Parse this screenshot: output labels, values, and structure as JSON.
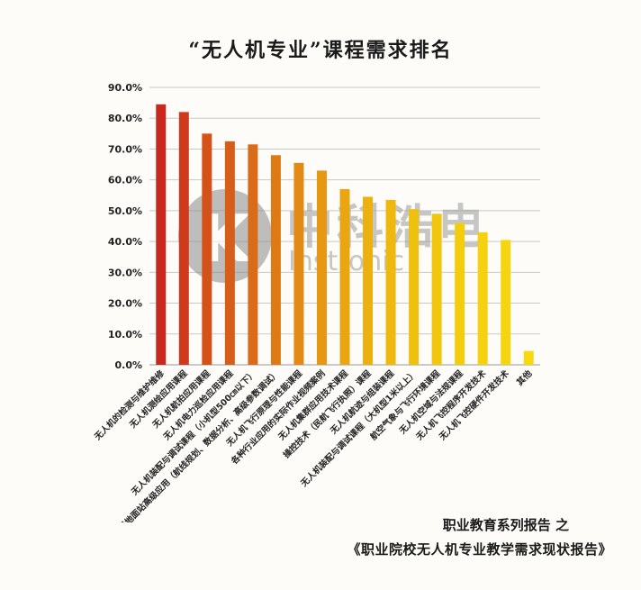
{
  "chart_data": {
    "type": "bar",
    "title": "“无人机专业”课程需求排名",
    "xlabel": "",
    "ylabel": "",
    "ylim": [
      0,
      90
    ],
    "yticks": [
      "0.0%",
      "10.0%",
      "20.0%",
      "30.0%",
      "40.0%",
      "50.0%",
      "60.0%",
      "70.0%",
      "80.0%",
      "90.0%"
    ],
    "grid": true,
    "categories": [
      "无人机的检测与维护维修",
      "无人机测绘应用课程",
      "无人机航拍应用课程",
      "无人机电力巡检应用课程",
      "无人机装配与调试课程（小机型500㎝以下）",
      "无人机地面站高级应用（航线规划、数据分析、高级参数调试）",
      "无人机飞行原理与性能课程",
      "各种行业应用的实际作业视频案例",
      "无人机集群应用技术课程",
      "操控技术（民航飞行执照）课程",
      "无人机航迹与组装课程",
      "无人机装配与调试课程（大机型1米以上）",
      "航空气象与飞行环境课程",
      "无人机空域与法规课程",
      "无人机飞控程序开发技术",
      "无人机飞控硬件开发技术",
      "其他"
    ],
    "values": [
      84.5,
      82,
      75,
      72.5,
      71.5,
      68,
      65.5,
      63,
      57,
      54.5,
      53.5,
      50.5,
      49,
      46,
      43,
      40.5,
      4.5
    ],
    "colors": [
      "#c8281e",
      "#cf3a1c",
      "#d4521a",
      "#d65e1a",
      "#da6b18",
      "#de7a16",
      "#e28a14",
      "#e69812",
      "#eaa611",
      "#ecb010",
      "#eeb80f",
      "#f0c00e",
      "#f2c60e",
      "#f4cc0e",
      "#f5d10f",
      "#f6d510",
      "#f8d812"
    ]
  },
  "watermark": {
    "mark": "K",
    "cn_text": "中科浩电",
    "en_text": "Instronic"
  },
  "footer": {
    "line1": "职业教育系列报告 之",
    "line2": "《职业院校无人机专业教学需求现状报告》"
  }
}
